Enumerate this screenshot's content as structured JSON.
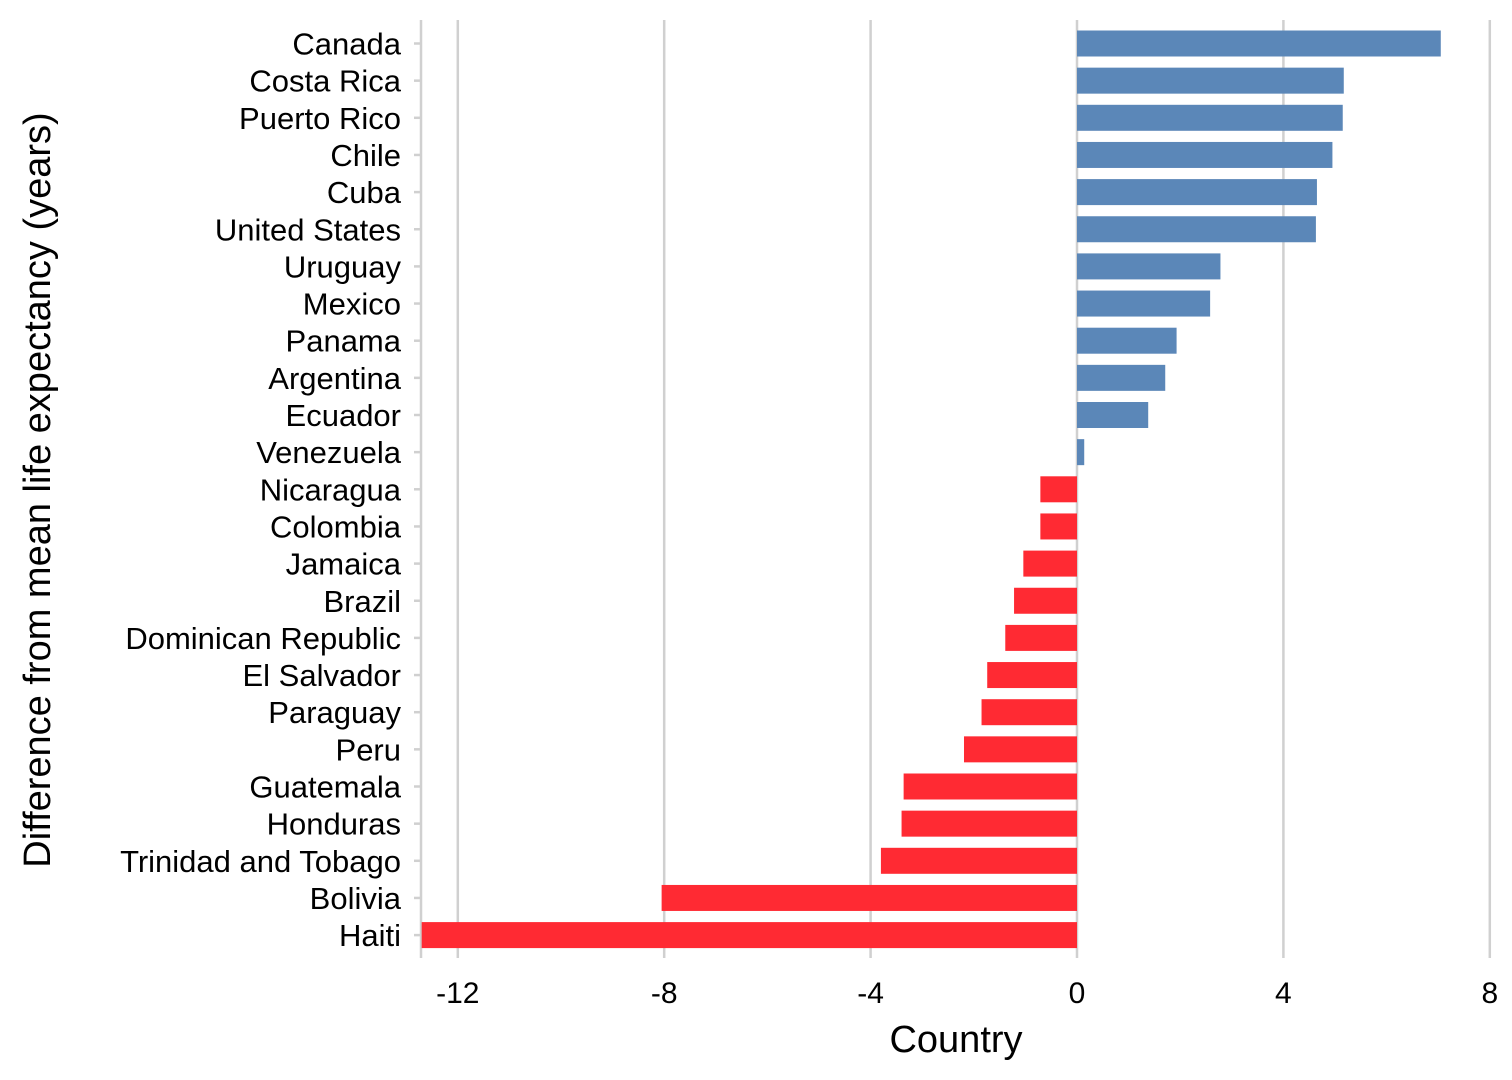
{
  "chart_data": {
    "type": "bar",
    "orientation": "horizontal",
    "title": "",
    "xlabel": "Country",
    "ylabel": "Difference from mean life expectancy (years)",
    "xlim": [
      -12.7,
      8
    ],
    "xticks": [
      -12,
      -8,
      -4,
      0,
      4,
      8
    ],
    "xtick_labels": [
      "-12",
      "-8",
      "-4",
      "0",
      "4",
      "8"
    ],
    "grid": true,
    "legend": "none",
    "colors": {
      "positive": "#5b87b8",
      "negative": "#ff2a33"
    },
    "categories": [
      "Canada",
      "Costa Rica",
      "Puerto Rico",
      "Chile",
      "Cuba",
      "United States",
      "Uruguay",
      "Mexico",
      "Panama",
      "Argentina",
      "Ecuador",
      "Venezuela",
      "Nicaragua",
      "Colombia",
      "Jamaica",
      "Brazil",
      "Dominican Republic",
      "El Salvador",
      "Paraguay",
      "Peru",
      "Guatemala",
      "Honduras",
      "Trinidad and Tobago",
      "Bolivia",
      "Haiti"
    ],
    "values": [
      7.05,
      5.17,
      5.15,
      4.95,
      4.65,
      4.63,
      2.78,
      2.58,
      1.93,
      1.71,
      1.38,
      0.14,
      -0.71,
      -0.71,
      -1.04,
      -1.22,
      -1.39,
      -1.74,
      -1.85,
      -2.19,
      -3.36,
      -3.4,
      -3.8,
      -8.05,
      -12.7
    ]
  }
}
